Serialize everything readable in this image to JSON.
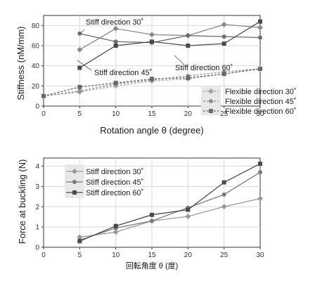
{
  "chart_data": [
    {
      "type": "line",
      "ylabel": "Stiffness (nM/mm)",
      "xlabel": "Rotation angle θ (degree)",
      "x": [
        0,
        5,
        10,
        15,
        20,
        25,
        30
      ],
      "xlim": [
        0,
        30
      ],
      "ylim": [
        0,
        90
      ],
      "xticks": [
        "0",
        "5",
        "10",
        "15",
        "20",
        "25",
        "30"
      ],
      "yticks": [
        "0",
        "20",
        "40",
        "60",
        "80"
      ],
      "grid": true,
      "legend_position": "bottom-right",
      "series": [
        {
          "name": "Stiff direction 30˚",
          "style": "solid",
          "marker": "diamond",
          "color": "#8a8a8a",
          "x": [
            5,
            10,
            15,
            20,
            25,
            30
          ],
          "values": [
            56,
            77,
            71,
            70,
            81,
            78
          ]
        },
        {
          "name": "Stiff direction 45˚",
          "style": "solid",
          "marker": "circle",
          "color": "#6d6d6d",
          "x": [
            5,
            10,
            15,
            20,
            25,
            30
          ],
          "values": [
            72,
            64,
            63,
            70,
            69,
            68
          ]
        },
        {
          "name": "Stiff direction 60˚",
          "style": "solid",
          "marker": "square",
          "color": "#4a4a4a",
          "x": [
            5,
            10,
            15,
            20,
            25,
            30
          ],
          "values": [
            38,
            60,
            64,
            60,
            62,
            84
          ]
        },
        {
          "name": "Flexible direction 30˚",
          "style": "dashed",
          "marker": "diamond",
          "color": "#a5a5a5",
          "x": [
            0,
            5,
            10,
            15,
            20,
            25,
            30
          ],
          "values": [
            10,
            14,
            20,
            25,
            27,
            32,
            37
          ]
        },
        {
          "name": "Flexible direction 45˚",
          "style": "dashed",
          "marker": "circle",
          "color": "#8f8f8f",
          "x": [
            0,
            5,
            10,
            15,
            20,
            25,
            30
          ],
          "values": [
            10,
            15,
            22,
            26,
            30,
            34,
            37
          ]
        },
        {
          "name": "Flexible direction 60˚",
          "style": "dashed",
          "marker": "square",
          "color": "#6a6a6a",
          "x": [
            0,
            5,
            10,
            15,
            20,
            25,
            30
          ],
          "values": [
            10,
            19,
            23,
            27,
            28,
            32,
            37
          ]
        }
      ],
      "annotations": [
        "Stiff direction 30˚",
        "Stiff direction 45˚",
        "Stiff direction 60˚"
      ]
    },
    {
      "type": "line",
      "ylabel": "Force at buckling (N)",
      "xlabel": "回転角度 θ (度)",
      "x": [
        5,
        10,
        15,
        20,
        25,
        30
      ],
      "xlim": [
        0,
        30
      ],
      "ylim": [
        0,
        4.4
      ],
      "xticks": [
        "0",
        "5",
        "10",
        "15",
        "20",
        "25",
        "30"
      ],
      "yticks": [
        "0",
        "1",
        "2",
        "3",
        "4"
      ],
      "grid": true,
      "legend_position": "top-left",
      "series": [
        {
          "name": "Stiff direction 30˚",
          "marker": "diamond",
          "color": "#9a9a9a",
          "values": [
            0.5,
            0.75,
            1.3,
            1.52,
            2.0,
            2.4
          ]
        },
        {
          "name": "Stiff direction 45˚",
          "marker": "circle",
          "color": "#7a7a7a",
          "values": [
            0.35,
            0.95,
            1.3,
            1.95,
            2.6,
            3.7
          ]
        },
        {
          "name": "Stiff direction 60˚",
          "marker": "square",
          "color": "#4a4a4a",
          "values": [
            0.3,
            1.05,
            1.6,
            1.85,
            3.2,
            4.12
          ]
        }
      ]
    }
  ]
}
